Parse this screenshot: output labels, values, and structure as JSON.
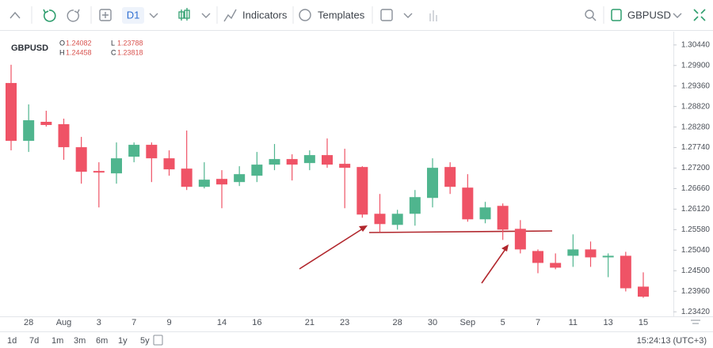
{
  "toolbar": {
    "timeframe": "D1",
    "indicators": "Indicators",
    "templates": "Templates",
    "symbol": "GBPUSD"
  },
  "ranges": [
    "1d",
    "7d",
    "1m",
    "3m",
    "6m",
    "1y",
    "5y"
  ],
  "clock": "15:24:13 (UTC+3)",
  "legend": {
    "symbol": "GBPUSD",
    "ohlc": [
      {
        "label": "O",
        "value": "1.24082"
      },
      {
        "label": "H",
        "value": "1.24458"
      },
      {
        "label": "L",
        "value": "1.23788"
      },
      {
        "label": "C",
        "value": "1.23818"
      }
    ]
  },
  "chart_data": {
    "type": "candlestick",
    "up_color": "#4fb58e",
    "down_color": "#ef5366",
    "grid": false,
    "categories": [
      null,
      "28",
      null,
      "Aug",
      null,
      "3",
      null,
      "7",
      null,
      "9",
      null,
      null,
      "14",
      null,
      "16",
      null,
      null,
      "21",
      null,
      "23",
      null,
      null,
      "28",
      null,
      "30",
      null,
      "Sep",
      null,
      "5",
      null,
      "7",
      null,
      "11",
      null,
      "13",
      null,
      "15"
    ],
    "open": [
      1.29439,
      1.27917,
      1.28418,
      1.28355,
      1.2775,
      1.27125,
      1.27062,
      1.275,
      1.27813,
      1.27458,
      1.27187,
      1.26708,
      1.26916,
      1.26833,
      1.27,
      1.27292,
      1.27438,
      1.27333,
      1.27542,
      1.27313,
      1.27229,
      1.25999,
      1.25707,
      1.25999,
      1.26416,
      1.27229,
      1.26687,
      1.25853,
      1.26207,
      1.25603,
      1.25019,
      1.24706,
      1.24894,
      1.25061,
      1.24852,
      1.24894,
      1.24082
    ],
    "high": [
      1.29919,
      1.28876,
      1.28709,
      1.28501,
      1.28021,
      1.27354,
      1.27875,
      1.27875,
      1.27875,
      1.27667,
      1.28188,
      1.27354,
      1.27146,
      1.2725,
      1.27625,
      1.27834,
      1.27563,
      1.27667,
      1.2798,
      1.27709,
      1.2725,
      1.2652,
      1.26103,
      1.26624,
      1.27458,
      1.27354,
      1.27041,
      1.26312,
      1.2627,
      1.25832,
      1.25061,
      1.24956,
      1.25457,
      1.25269,
      1.24956,
      1.24998,
      1.24458
    ],
    "low": [
      1.27667,
      1.27625,
      1.28292,
      1.27417,
      1.26791,
      1.26166,
      1.26791,
      1.27354,
      1.26833,
      1.27,
      1.26624,
      1.26666,
      1.26145,
      1.26729,
      1.26833,
      1.27146,
      1.26875,
      1.27146,
      1.27208,
      1.26145,
      1.25895,
      1.25519,
      1.25582,
      1.25686,
      1.26166,
      1.2652,
      1.2579,
      1.25749,
      1.25311,
      1.24956,
      1.24435,
      1.24539,
      1.24602,
      1.24602,
      1.24331,
      1.23956,
      1.23788
    ],
    "close": [
      1.27917,
      1.28459,
      1.28334,
      1.2775,
      1.27104,
      1.27083,
      1.27458,
      1.27813,
      1.27458,
      1.27167,
      1.26708,
      1.26896,
      1.2677,
      1.27041,
      1.27292,
      1.27438,
      1.27292,
      1.27542,
      1.27292,
      1.27208,
      1.25978,
      1.25728,
      1.25999,
      1.26437,
      1.27208,
      1.26708,
      1.25853,
      1.26166,
      1.25582,
      1.25061,
      1.24706,
      1.24581,
      1.25061,
      1.24852,
      1.24894,
      1.24039,
      1.23818
    ],
    "ylim": [
      1.233,
      1.3079
    ],
    "yticks": [
      {
        "value": 1.3044,
        "label": "1.30440"
      },
      {
        "value": 1.299,
        "label": "1.29900"
      },
      {
        "value": 1.2936,
        "label": "1.29360"
      },
      {
        "value": 1.2882,
        "label": "1.28820"
      },
      {
        "value": 1.2828,
        "label": "1.28280"
      },
      {
        "value": 1.2774,
        "label": "1.27740"
      },
      {
        "value": 1.272,
        "label": "1.27200"
      },
      {
        "value": 1.2666,
        "label": "1.26660"
      },
      {
        "value": 1.2612,
        "label": "1.26120"
      },
      {
        "value": 1.2558,
        "label": "1.25580"
      },
      {
        "value": 1.2504,
        "label": "1.25040"
      },
      {
        "value": 1.245,
        "label": "1.24500"
      },
      {
        "value": 1.2396,
        "label": "1.23960"
      },
      {
        "value": 1.2342,
        "label": "1.23420"
      }
    ]
  }
}
